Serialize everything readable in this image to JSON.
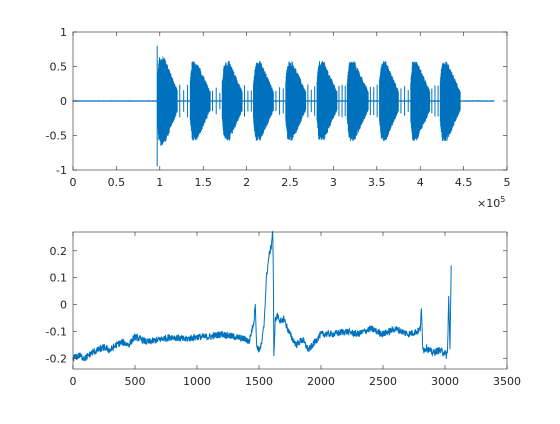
{
  "chart_data": [
    {
      "type": "line",
      "title": "",
      "xlabel": "",
      "ylabel": "",
      "xlim": [
        0,
        500000
      ],
      "ylim": [
        -1,
        1
      ],
      "x_ticks": [
        0,
        50000,
        100000,
        150000,
        200000,
        250000,
        300000,
        350000,
        400000,
        450000,
        500000
      ],
      "x_tick_labels": [
        "0",
        "0.5",
        "1",
        "1.5",
        "2",
        "2.5",
        "3",
        "3.5",
        "4",
        "4.5",
        "5"
      ],
      "x_exponent": {
        "base": "×10",
        "power": "5"
      },
      "y_ticks": [
        -1,
        -0.5,
        0,
        0.5,
        1
      ],
      "y_tick_labels": [
        "-1",
        "-0.5",
        "0",
        "0.5",
        "1"
      ],
      "grid": false,
      "line_color": "#0072BD",
      "x_data_end": 485000,
      "noise_floor": 0.01,
      "spike": {
        "x": 97000,
        "ymax": 0.8,
        "ymin": -0.95
      },
      "bursts": [
        {
          "start": 97000,
          "end": 120000,
          "peak": 0.65
        },
        {
          "start": 135000,
          "end": 158000,
          "peak": 0.58
        },
        {
          "start": 172000,
          "end": 195000,
          "peak": 0.58
        },
        {
          "start": 208000,
          "end": 231000,
          "peak": 0.58
        },
        {
          "start": 245000,
          "end": 268000,
          "peak": 0.58
        },
        {
          "start": 281000,
          "end": 304000,
          "peak": 0.58
        },
        {
          "start": 316000,
          "end": 340000,
          "peak": 0.58
        },
        {
          "start": 353000,
          "end": 375000,
          "peak": 0.58
        },
        {
          "start": 389000,
          "end": 411000,
          "peak": 0.58
        },
        {
          "start": 423000,
          "end": 446000,
          "peak": 0.58
        }
      ]
    },
    {
      "type": "line",
      "title": "",
      "xlabel": "",
      "ylabel": "",
      "xlim": [
        0,
        3500
      ],
      "ylim": [
        -0.24,
        0.27
      ],
      "x_ticks": [
        0,
        500,
        1000,
        1500,
        2000,
        2500,
        3000,
        3500
      ],
      "x_tick_labels": [
        "0",
        "500",
        "1000",
        "1500",
        "2000",
        "2500",
        "3000",
        "3500"
      ],
      "y_ticks": [
        -0.2,
        -0.1,
        0,
        0.1,
        0.2
      ],
      "y_tick_labels": [
        "-0.2",
        "-0.1",
        "0",
        "0.1",
        "0.2"
      ],
      "grid": false,
      "line_color": "#0072BD",
      "x": [
        0,
        50,
        100,
        150,
        200,
        250,
        300,
        350,
        400,
        450,
        500,
        600,
        700,
        800,
        900,
        1000,
        1100,
        1200,
        1300,
        1400,
        1420,
        1440,
        1450,
        1460,
        1470,
        1480,
        1500,
        1520,
        1540,
        1560,
        1580,
        1600,
        1610,
        1615,
        1620,
        1630,
        1650,
        1680,
        1700,
        1730,
        1760,
        1800,
        1850,
        1900,
        2000,
        2100,
        2200,
        2300,
        2400,
        2500,
        2600,
        2700,
        2780,
        2800,
        2810,
        2820,
        2830,
        2850,
        2900,
        2950,
        3000,
        3010,
        3020,
        3030,
        3040,
        3050
      ],
      "values": [
        -0.2,
        -0.19,
        -0.2,
        -0.18,
        -0.17,
        -0.16,
        -0.17,
        -0.15,
        -0.14,
        -0.15,
        -0.12,
        -0.14,
        -0.13,
        -0.12,
        -0.13,
        -0.12,
        -0.12,
        -0.11,
        -0.12,
        -0.13,
        -0.14,
        -0.1,
        -0.08,
        -0.06,
        0.01,
        -0.15,
        -0.17,
        -0.15,
        -0.08,
        0.1,
        0.18,
        0.22,
        0.28,
        0.15,
        -0.2,
        -0.06,
        -0.04,
        -0.07,
        -0.05,
        -0.09,
        -0.12,
        -0.15,
        -0.13,
        -0.17,
        -0.11,
        -0.11,
        -0.1,
        -0.11,
        -0.09,
        -0.11,
        -0.09,
        -0.11,
        -0.1,
        -0.09,
        -0.02,
        -0.15,
        -0.17,
        -0.16,
        -0.18,
        -0.17,
        -0.18,
        -0.19,
        -0.18,
        0.03,
        -0.17,
        0.15
      ],
      "jitter": 0.013
    }
  ]
}
